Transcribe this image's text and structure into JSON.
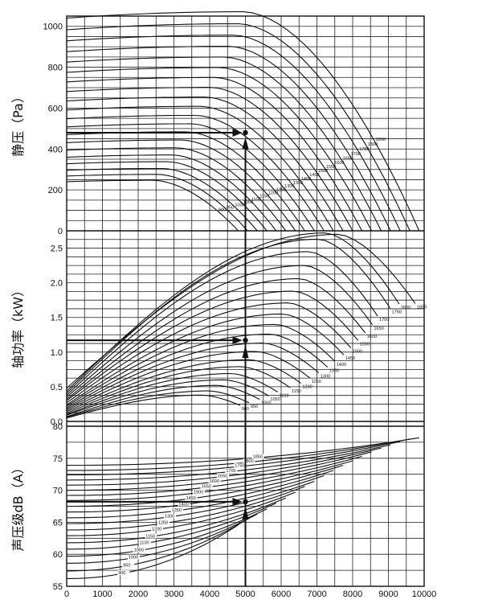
{
  "chart_data": [
    {
      "type": "line",
      "ylabel": "静压（Pa）",
      "ylim": [
        0,
        1050
      ],
      "yticks": [
        "0",
        "200",
        "400",
        "600",
        "800",
        "1000"
      ],
      "curve_labels": [
        "900",
        "950",
        "1000",
        "1050",
        "1100",
        "1150",
        "1200",
        "1250",
        "1300",
        "1350",
        "1400",
        "1450",
        "1500",
        "1550",
        "1600",
        "1650",
        "1700",
        "1750",
        "1800",
        "1850"
      ],
      "rpm": [
        900,
        950,
        1000,
        1050,
        1100,
        1150,
        1200,
        1250,
        1300,
        1350,
        1400,
        1450,
        1500,
        1550,
        1600,
        1650,
        1700,
        1750,
        1800,
        1850
      ],
      "shutoff_pressure": [
        240,
        268,
        296,
        328,
        360,
        394,
        431,
        470,
        508,
        548,
        591,
        635,
        681,
        728,
        775,
        825,
        876,
        929,
        983,
        1040
      ],
      "max_flow": [
        4800,
        5060,
        5330,
        5600,
        5860,
        6130,
        6400,
        6660,
        6930,
        7200,
        7460,
        7730,
        8000,
        8260,
        8530,
        8800,
        9060,
        9330,
        9600,
        9860
      ],
      "operating_point": {
        "x": 5000,
        "y": 480
      }
    },
    {
      "type": "line",
      "ylabel": "轴功率（kW）",
      "ylim": [
        0,
        2.75
      ],
      "yticks": [
        "0.0",
        "0.5",
        "1.0",
        "1.5",
        "2.0",
        "2.5"
      ],
      "curve_labels": [
        "900",
        "950",
        "1000",
        "1050",
        "1100",
        "1150",
        "1200",
        "1250",
        "1300",
        "1350",
        "1400",
        "1450",
        "1500",
        "1550",
        "1600",
        "1650",
        "1700",
        "1750",
        "1800",
        "1850"
      ],
      "label_x": [
        4850,
        5100,
        5400,
        5650,
        5900,
        6250,
        6550,
        6800,
        7050,
        7300,
        7500,
        7750,
        7950,
        8150,
        8350,
        8550,
        8700,
        9050,
        9300,
        9750
      ],
      "start_power": [
        0.05,
        0.06,
        0.07,
        0.09,
        0.1,
        0.12,
        0.14,
        0.16,
        0.18,
        0.2,
        0.22,
        0.24,
        0.27,
        0.3,
        0.32,
        0.35,
        0.38,
        0.41,
        0.44,
        0.48
      ],
      "peak_power": [
        0.38,
        0.44,
        0.52,
        0.6,
        0.69,
        0.79,
        0.89,
        1.01,
        1.13,
        1.26,
        1.4,
        1.55,
        1.71,
        1.88,
        2.06,
        2.25,
        2.45,
        2.63,
        2.8,
        2.7
      ],
      "operating_point": {
        "x": 5000,
        "y": 1.17
      }
    },
    {
      "type": "line",
      "ylabel": "声压级dB（A）",
      "ylim": [
        55,
        80
      ],
      "yticks": [
        "55",
        "60",
        "65",
        "70",
        "75",
        "80"
      ],
      "curve_labels": [
        "900",
        "950",
        "1000",
        "1050",
        "1100",
        "1150",
        "1200",
        "1250",
        "1300",
        "1350",
        "1400",
        "1450",
        "1500",
        "1550",
        "1600",
        "1650",
        "1700",
        "1750",
        "1800",
        "1850"
      ],
      "base_level": [
        56.2,
        57.4,
        58.6,
        59.7,
        60.8,
        61.8,
        62.9,
        63.8,
        64.8,
        65.7,
        66.6,
        67.5,
        68.4,
        69.2,
        70.0,
        70.8,
        71.6,
        72.4,
        73.1,
        73.9
      ],
      "end_flow": [
        4800,
        5060,
        5330,
        5600,
        5860,
        6130,
        6400,
        6660,
        6930,
        7200,
        7460,
        7730,
        8000,
        8260,
        8530,
        8800,
        9060,
        9330,
        9600,
        9860
      ],
      "end_level": [
        64.6,
        65.5,
        66.3,
        67.1,
        68.0,
        68.8,
        69.7,
        70.6,
        71.4,
        72.3,
        73.1,
        73.9,
        74.6,
        75.3,
        76.0,
        76.6,
        77.1,
        77.6,
        78.0,
        78.2
      ],
      "operating_point": {
        "x": 5000,
        "y": 68.2
      }
    }
  ],
  "x_axis": {
    "xlim": [
      0,
      10000
    ],
    "ticks": [
      "0",
      "1000",
      "2000",
      "3000",
      "4000",
      "5000",
      "6000",
      "7000",
      "8000",
      "9000",
      "10000"
    ]
  },
  "colors": {
    "line": "#111111",
    "grid": "#222222",
    "background": "#ffffff"
  }
}
